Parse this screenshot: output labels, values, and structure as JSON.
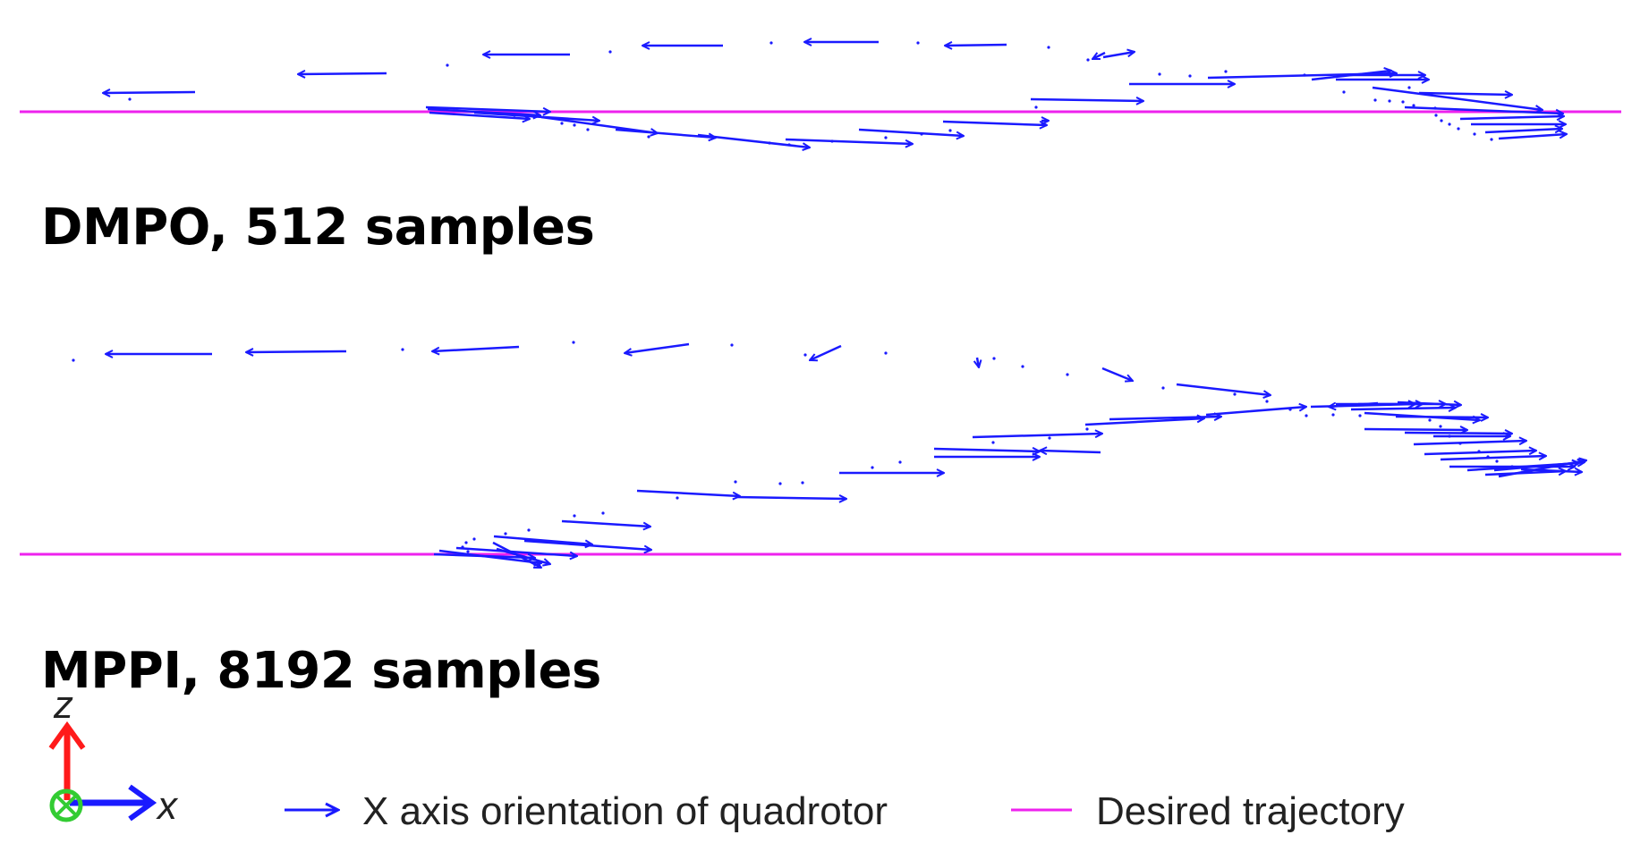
{
  "panels": [
    {
      "title": "DMPO, 512 samples"
    },
    {
      "title": "MPPI, 8192 samples"
    }
  ],
  "axes": {
    "z_label": "z",
    "x_label": "x"
  },
  "legend": {
    "arrow_label": "X axis orientation of quadrotor",
    "line_label": "Desired trajectory"
  },
  "colors": {
    "arrow": "#1a1aff",
    "desired_trajectory": "#ee22ee",
    "z_axis": "#ff1a1a",
    "x_axis": "#1a1aff",
    "y_axis_marker": "#33cc33"
  }
}
